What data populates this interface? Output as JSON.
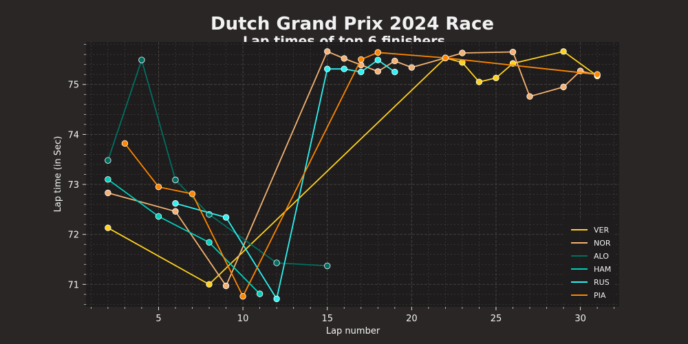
{
  "chart_data": {
    "type": "line",
    "title": "Dutch Grand Prix 2024 Race",
    "subtitle": "Lap times of top 6 finishers",
    "xlabel": "Lap number",
    "ylabel": "Lap time (in Sec)",
    "xlim": [
      0.7,
      32.3
    ],
    "ylim": [
      70.55,
      75.85
    ],
    "x_ticks": [
      5,
      10,
      15,
      20,
      25,
      30
    ],
    "y_ticks": [
      71,
      72,
      73,
      74,
      75
    ],
    "grid": true,
    "legend_position": "bottom-right",
    "colors": {
      "background": "#2a2626",
      "plot_background": "#1e1c1c",
      "grid": "#4a4545",
      "text": "#f2f2f2"
    },
    "series": [
      {
        "name": "VER",
        "color": "#ffd21f",
        "points": [
          [
            2,
            72.13
          ],
          [
            8,
            71.0
          ],
          [
            22,
            75.53
          ],
          [
            23,
            75.44
          ],
          [
            24,
            75.05
          ],
          [
            25,
            75.13
          ],
          [
            26,
            75.42
          ],
          [
            29,
            75.66
          ],
          [
            31,
            75.17
          ]
        ]
      },
      {
        "name": "NOR",
        "color": "#f4b373",
        "points": [
          [
            2,
            72.83
          ],
          [
            6,
            72.46
          ],
          [
            9,
            70.97
          ],
          [
            15,
            75.66
          ],
          [
            16,
            75.52
          ],
          [
            17,
            75.39
          ],
          [
            18,
            75.26
          ],
          [
            19,
            75.47
          ],
          [
            20,
            75.34
          ],
          [
            22,
            75.53
          ],
          [
            23,
            75.63
          ],
          [
            26,
            75.65
          ],
          [
            27,
            74.76
          ],
          [
            29,
            74.95
          ],
          [
            30,
            75.27
          ],
          [
            31,
            75.19
          ]
        ]
      },
      {
        "name": "ALO",
        "color": "#006f62",
        "points": [
          [
            2,
            73.48
          ],
          [
            4,
            75.49
          ],
          [
            6,
            73.09
          ],
          [
            8,
            72.4
          ],
          [
            12,
            71.43
          ],
          [
            15,
            71.37
          ]
        ]
      },
      {
        "name": "HAM",
        "color": "#00d2be",
        "points": [
          [
            2,
            73.1
          ],
          [
            5,
            72.36
          ],
          [
            8,
            71.84
          ],
          [
            11,
            70.81
          ]
        ]
      },
      {
        "name": "RUS",
        "color": "#2ef2f2",
        "points": [
          [
            6,
            72.62
          ],
          [
            9,
            72.34
          ],
          [
            12,
            70.71
          ],
          [
            15,
            75.31
          ],
          [
            16,
            75.31
          ],
          [
            17,
            75.25
          ],
          [
            18,
            75.49
          ],
          [
            19,
            75.25
          ]
        ]
      },
      {
        "name": "PIA",
        "color": "#ff8700",
        "points": [
          [
            3,
            73.82
          ],
          [
            5,
            72.95
          ],
          [
            7,
            72.81
          ],
          [
            10,
            70.76
          ],
          [
            17,
            75.5
          ],
          [
            18,
            75.64
          ],
          [
            22,
            75.53
          ],
          [
            31,
            75.2
          ]
        ]
      }
    ]
  }
}
